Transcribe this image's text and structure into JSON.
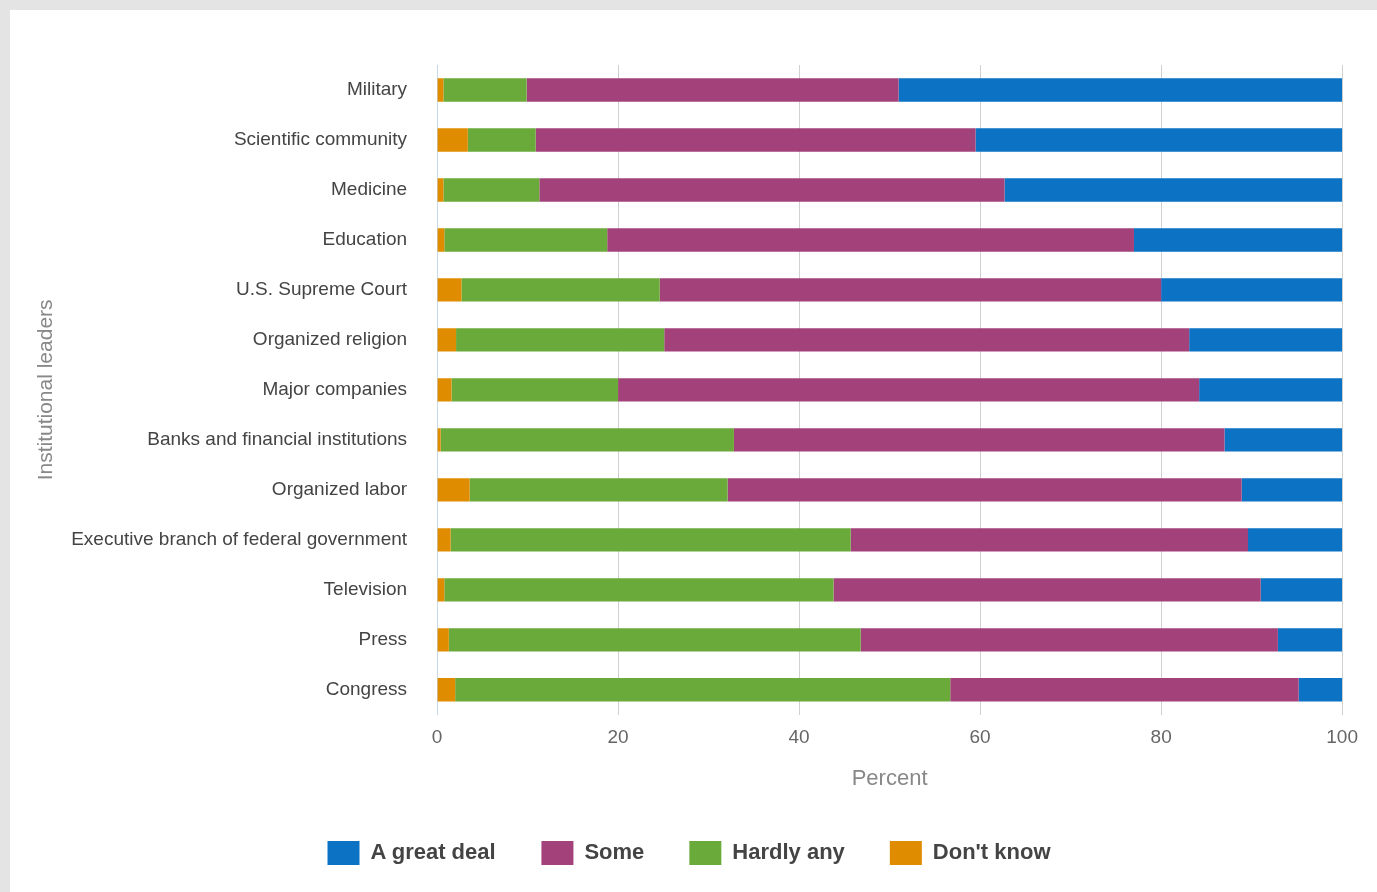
{
  "chart_data": {
    "type": "bar",
    "orientation": "horizontal",
    "stacked": true,
    "xlabel": "Percent",
    "ylabel": "Institutional leaders",
    "categories": [
      "Military",
      "Scientific community",
      "Medicine",
      "Education",
      "U.S. Supreme Court",
      "Organized religion",
      "Major companies",
      "Banks and financial institutions",
      "Organized labor",
      "Executive branch of federal government",
      "Television",
      "Press",
      "Congress"
    ],
    "series": [
      {
        "name": "Don't know",
        "color": "#e08c00",
        "values": [
          0.7,
          3.4,
          0.7,
          0.8,
          2.7,
          2.1,
          1.6,
          0.4,
          3.6,
          1.5,
          0.8,
          1.3,
          2.0
        ]
      },
      {
        "name": "Hardly any",
        "color": "#6aaa3a",
        "values": [
          9.2,
          7.5,
          10.6,
          18.0,
          21.9,
          23.0,
          18.4,
          32.4,
          28.5,
          44.2,
          43.0,
          45.5,
          54.7
        ]
      },
      {
        "name": "Some",
        "color": "#a3427a",
        "values": [
          41.1,
          48.6,
          51.4,
          58.2,
          55.4,
          58.0,
          64.2,
          54.2,
          56.8,
          43.9,
          47.2,
          46.1,
          38.5
        ]
      },
      {
        "name": "A great deal",
        "color": "#0b72c4",
        "values": [
          49.0,
          40.5,
          37.3,
          23.0,
          20.0,
          16.9,
          15.8,
          13.0,
          11.1,
          10.4,
          9.0,
          7.1,
          4.8
        ]
      }
    ],
    "xlim": [
      0,
      100
    ],
    "xticks": [
      0,
      20,
      40,
      60,
      80,
      100
    ],
    "grid": "x",
    "legend": "bottom"
  }
}
